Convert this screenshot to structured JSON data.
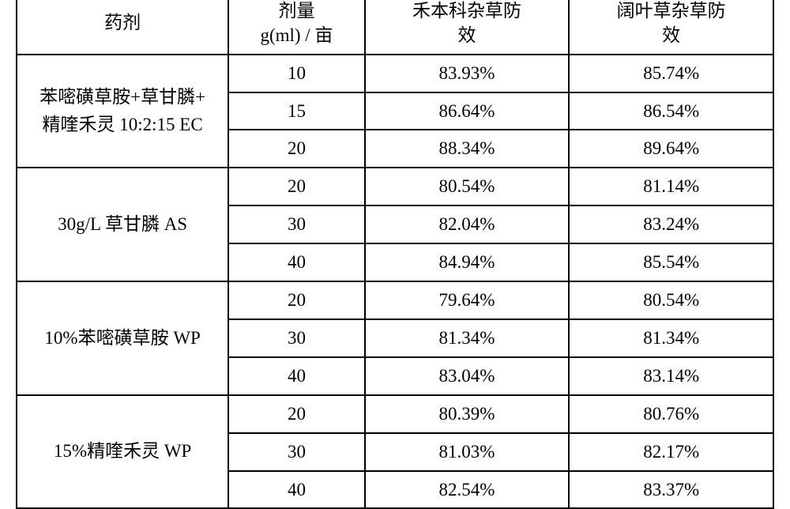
{
  "table": {
    "columns": {
      "agent": "药剂",
      "dose": "剂量\ng(ml) / 亩",
      "grass_eff": "禾本科杂草防\n效",
      "broadleaf_eff": "阔叶草杂草防\n效"
    },
    "col_widths_pct": [
      28,
      18,
      27,
      27
    ],
    "header_fontsize": 23,
    "body_fontsize": 23,
    "border_color": "#000000",
    "background_color": "#ffffff",
    "groups": [
      {
        "agent": "苯嘧磺草胺+草甘膦+\n精喹禾灵 10:2:15 EC",
        "rows": [
          {
            "dose": "10",
            "grass_eff": "83.93%",
            "broadleaf_eff": "85.74%"
          },
          {
            "dose": "15",
            "grass_eff": "86.64%",
            "broadleaf_eff": "86.54%"
          },
          {
            "dose": "20",
            "grass_eff": "88.34%",
            "broadleaf_eff": "89.64%"
          }
        ]
      },
      {
        "agent": "30g/L 草甘膦 AS",
        "rows": [
          {
            "dose": "20",
            "grass_eff": "80.54%",
            "broadleaf_eff": "81.14%"
          },
          {
            "dose": "30",
            "grass_eff": "82.04%",
            "broadleaf_eff": "83.24%"
          },
          {
            "dose": "40",
            "grass_eff": "84.94%",
            "broadleaf_eff": "85.54%"
          }
        ]
      },
      {
        "agent": "10%苯嘧磺草胺 WP",
        "rows": [
          {
            "dose": "20",
            "grass_eff": "79.64%",
            "broadleaf_eff": "80.54%"
          },
          {
            "dose": "30",
            "grass_eff": "81.34%",
            "broadleaf_eff": "81.34%"
          },
          {
            "dose": "40",
            "grass_eff": "83.04%",
            "broadleaf_eff": "83.14%"
          }
        ]
      },
      {
        "agent": "15%精喹禾灵 WP",
        "rows": [
          {
            "dose": "20",
            "grass_eff": "80.39%",
            "broadleaf_eff": "80.76%"
          },
          {
            "dose": "30",
            "grass_eff": "81.03%",
            "broadleaf_eff": "82.17%"
          },
          {
            "dose": "40",
            "grass_eff": "82.54%",
            "broadleaf_eff": "83.37%"
          }
        ]
      }
    ]
  }
}
